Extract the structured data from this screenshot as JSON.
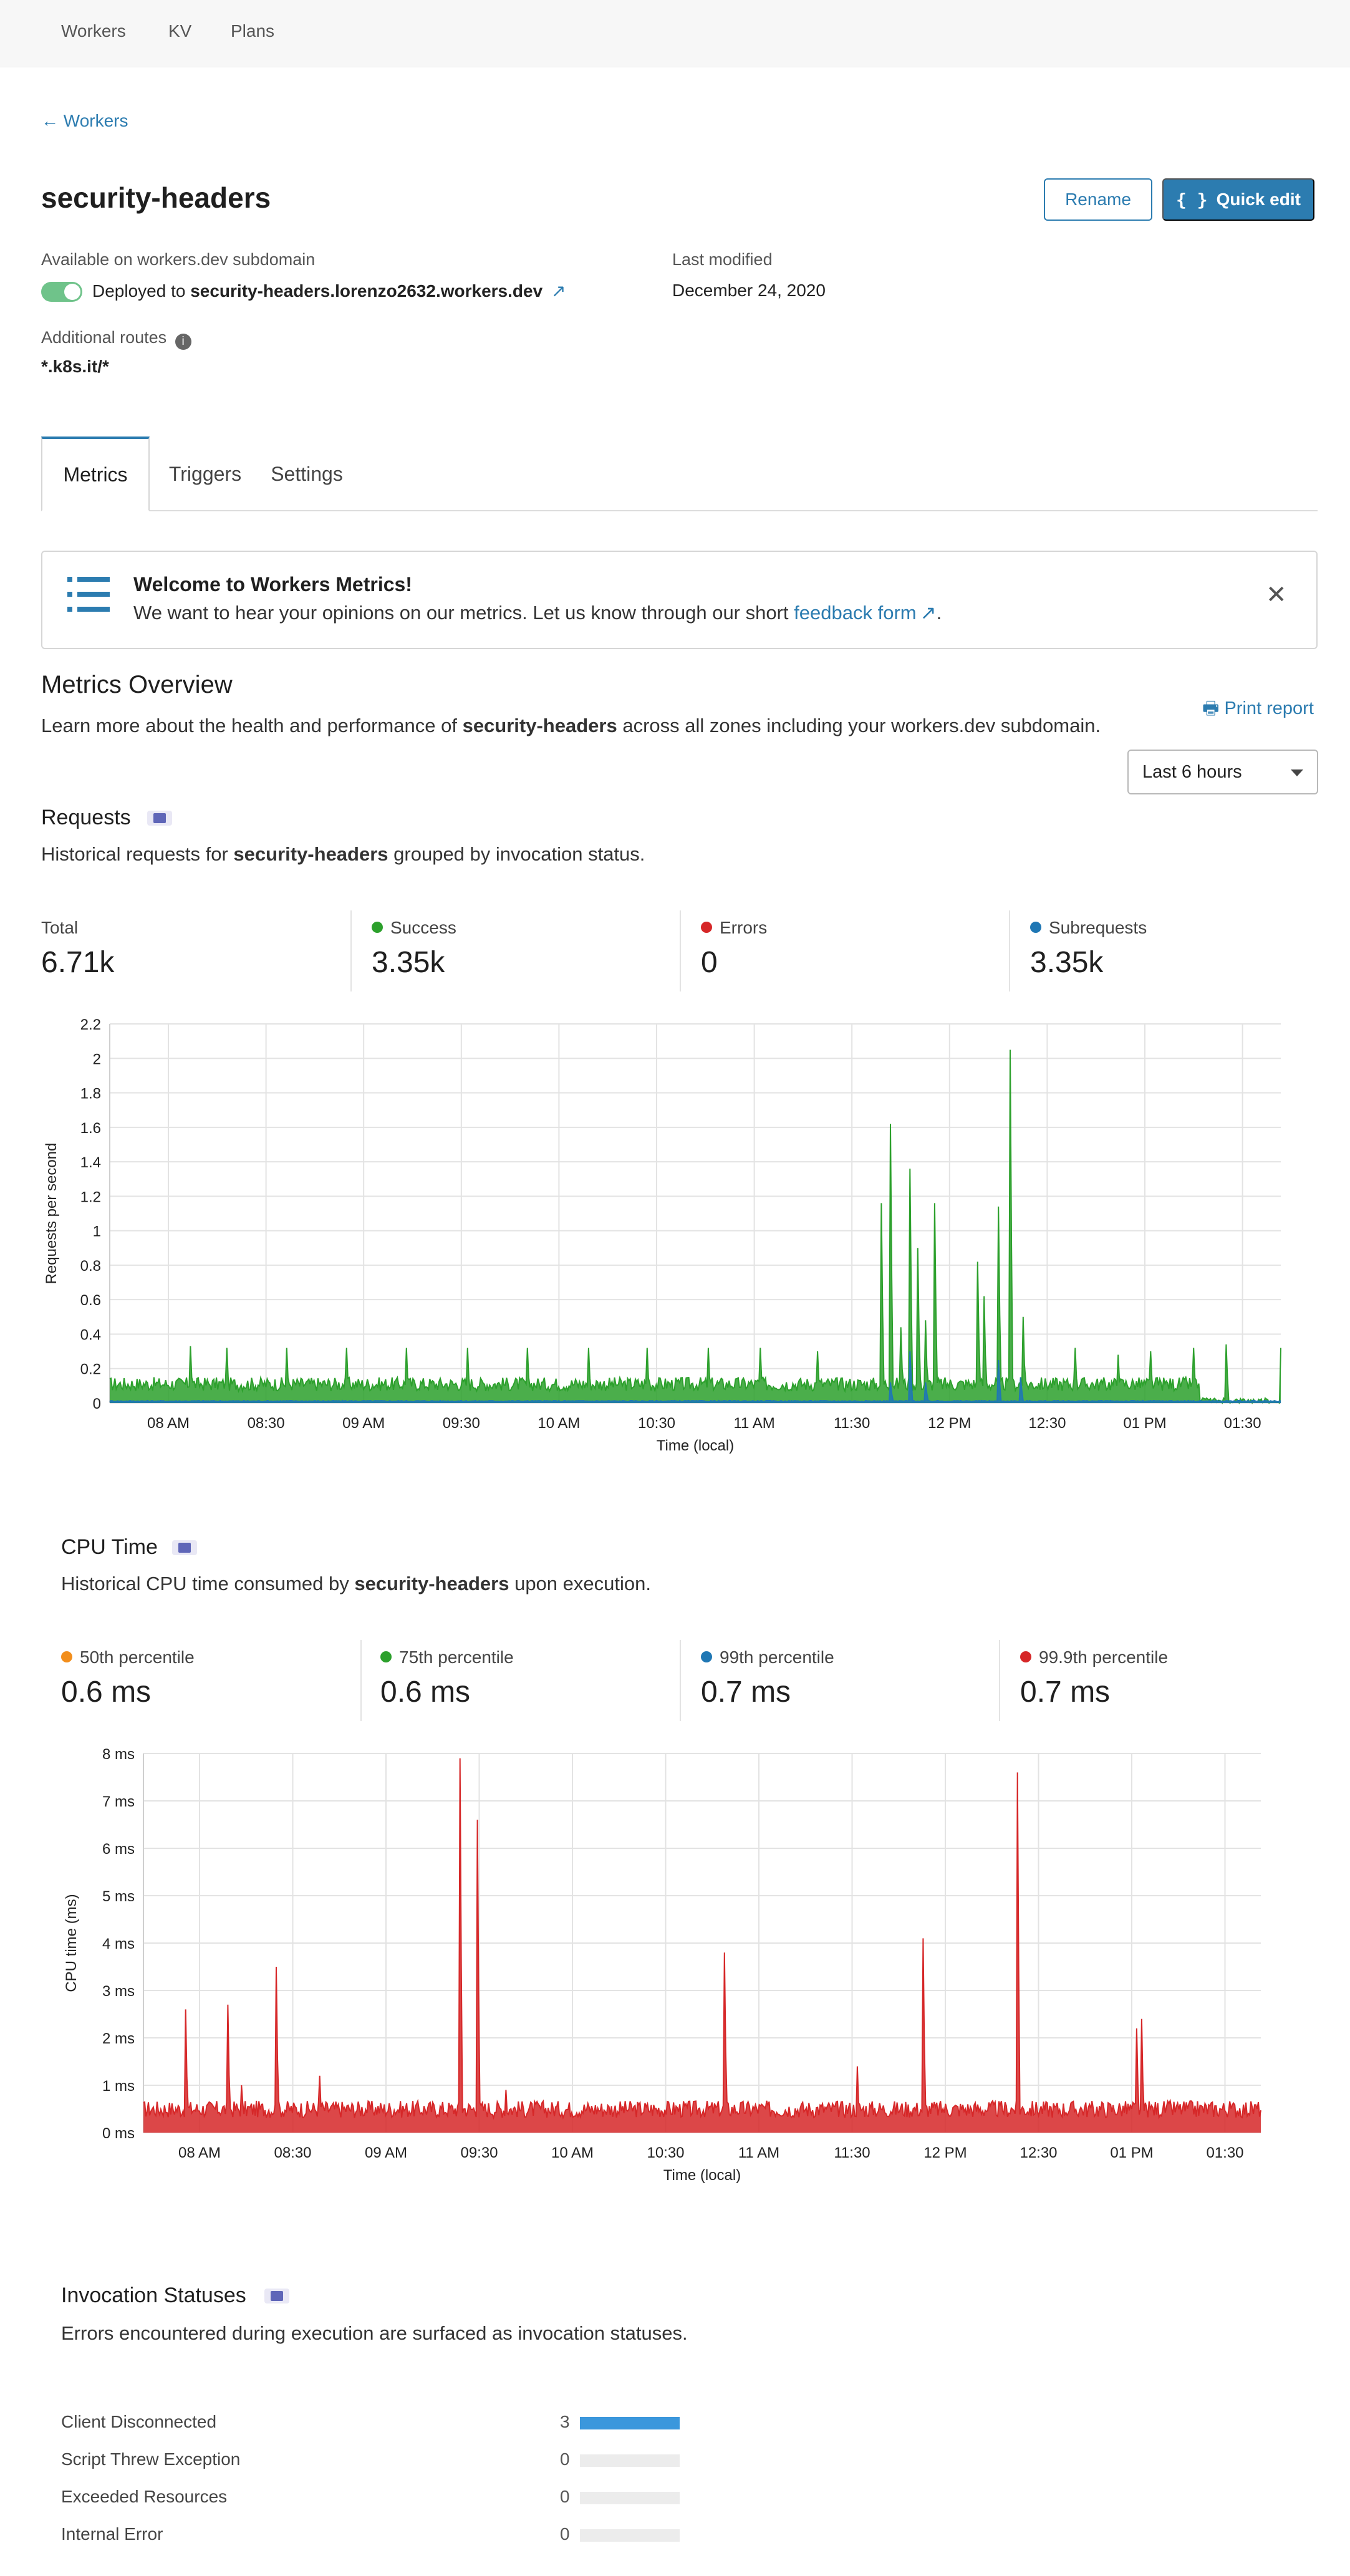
{
  "nav": {
    "items": [
      "Workers",
      "KV",
      "Plans"
    ]
  },
  "back": {
    "label": "Workers"
  },
  "worker": {
    "name": "security-headers",
    "subdomain_label": "Available on workers.dev subdomain",
    "deployed_prefix": "Deployed to",
    "deployed_host": "security-headers.lorenzo2632.workers.dev",
    "modified_label": "Last modified",
    "modified_value": "December 24, 2020",
    "routes_label": "Additional routes",
    "routes_value": "*.k8s.it/*"
  },
  "buttons": {
    "rename": "Rename",
    "quick_edit": "Quick edit"
  },
  "tabs": [
    "Metrics",
    "Triggers",
    "Settings"
  ],
  "banner": {
    "title": "Welcome to Workers Metrics!",
    "text": "We want to hear your opinions on our metrics. Let us know through our short",
    "link": "feedback form",
    "end": "."
  },
  "overview": {
    "title": "Metrics Overview",
    "desc_pre": "Learn more about the health and performance of",
    "desc_strong": "security-headers",
    "desc_post": "across all zones including your workers.dev subdomain.",
    "print": "Print report",
    "range": "Last 6 hours"
  },
  "requests": {
    "title": "Requests",
    "desc_pre": "Historical requests for",
    "desc_strong": "security-headers",
    "desc_post": "grouped by invocation status.",
    "stats": [
      {
        "label": "Total",
        "value": "6.71k",
        "color": ""
      },
      {
        "label": "Success",
        "value": "3.35k",
        "color": "#2ca02c"
      },
      {
        "label": "Errors",
        "value": "0",
        "color": "#d62728"
      },
      {
        "label": "Subrequests",
        "value": "3.35k",
        "color": "#1f77b4"
      }
    ]
  },
  "cpu": {
    "title": "CPU Time",
    "desc_pre": "Historical CPU time consumed by",
    "desc_strong": "security-headers",
    "desc_post": "upon execution.",
    "stats": [
      {
        "label": "50th percentile",
        "value": "0.6 ms",
        "color": "#f28e1c"
      },
      {
        "label": "75th percentile",
        "value": "0.6 ms",
        "color": "#2ca02c"
      },
      {
        "label": "99th percentile",
        "value": "0.7 ms",
        "color": "#1f77b4"
      },
      {
        "label": "99.9th percentile",
        "value": "0.7 ms",
        "color": "#d62728"
      }
    ]
  },
  "invocations": {
    "title": "Invocation Statuses",
    "desc": "Errors encountered during execution are surfaced as invocation statuses.",
    "rows": [
      {
        "label": "Client Disconnected",
        "count": "3",
        "fraction": 1.0
      },
      {
        "label": "Script Threw Exception",
        "count": "0",
        "fraction": 0
      },
      {
        "label": "Exceeded Resources",
        "count": "0",
        "fraction": 0
      },
      {
        "label": "Internal Error",
        "count": "0",
        "fraction": 0
      }
    ]
  },
  "chart_data": [
    {
      "type": "line",
      "title": "",
      "xlabel": "Time (local)",
      "ylabel": "Requests per second",
      "ylim": [
        0,
        2.2
      ],
      "yticks": [
        "0",
        "0.2",
        "0.4",
        "0.6",
        "0.8",
        "1",
        "1.2",
        "1.4",
        "1.6",
        "1.8",
        "2",
        "2.2"
      ],
      "xticks": [
        "08 AM",
        "08:30",
        "09 AM",
        "09:30",
        "10 AM",
        "10:30",
        "11 AM",
        "11:30",
        "12 PM",
        "12:30",
        "01 PM",
        "01:30"
      ],
      "grid": true,
      "series": [
        {
          "color": "#2ca02c",
          "baseline": 0.1,
          "spikes": [
            [
              0.075,
              0.33
            ],
            [
              0.108,
              0.32
            ],
            [
              0.163,
              0.32
            ],
            [
              0.218,
              0.32
            ],
            [
              0.274,
              0.32
            ],
            [
              0.33,
              0.32
            ],
            [
              0.385,
              0.32
            ],
            [
              0.441,
              0.32
            ],
            [
              0.496,
              0.32
            ],
            [
              0.552,
              0.32
            ],
            [
              0.6,
              0.32
            ],
            [
              0.653,
              0.3
            ],
            [
              0.712,
              1.16
            ],
            [
              0.72,
              1.62
            ],
            [
              0.73,
              0.44
            ],
            [
              0.738,
              1.36
            ],
            [
              0.745,
              0.9
            ],
            [
              0.752,
              0.48
            ],
            [
              0.761,
              1.16
            ],
            [
              0.8,
              0.82
            ],
            [
              0.806,
              0.62
            ],
            [
              0.82,
              1.14
            ],
            [
              0.83,
              2.05
            ],
            [
              0.842,
              0.5
            ],
            [
              0.89,
              0.32
            ],
            [
              0.93,
              0.28
            ],
            [
              0.96,
              0.3
            ],
            [
              1.0,
              0.32
            ],
            [
              1.03,
              0.34
            ],
            [
              1.08,
              0.32
            ]
          ]
        },
        {
          "color": "#1f77b4",
          "baseline": 0.01,
          "spikes": [
            [
              0.72,
              0.12
            ],
            [
              0.738,
              0.3
            ],
            [
              0.752,
              0.12
            ],
            [
              0.82,
              0.25
            ],
            [
              0.84,
              0.15
            ]
          ]
        }
      ]
    },
    {
      "type": "line",
      "title": "",
      "xlabel": "Time (local)",
      "ylabel": "CPU time (ms)",
      "ylim": [
        0,
        8
      ],
      "yticks": [
        "0 ms",
        "1 ms",
        "2 ms",
        "3 ms",
        "4 ms",
        "5 ms",
        "6 ms",
        "7 ms",
        "8 ms"
      ],
      "xticks": [
        "08 AM",
        "08:30",
        "09 AM",
        "09:30",
        "10 AM",
        "10:30",
        "11 AM",
        "11:30",
        "12 PM",
        "12:30",
        "01 PM",
        "01:30"
      ],
      "grid": true,
      "series": [
        {
          "color": "#d62728",
          "baseline": 0.45,
          "spikes": [
            [
              0.041,
              2.6
            ],
            [
              0.082,
              2.7
            ],
            [
              0.095,
              1.0
            ],
            [
              0.129,
              3.5
            ],
            [
              0.17,
              1.2
            ],
            [
              0.306,
              7.9
            ],
            [
              0.323,
              6.6
            ],
            [
              0.35,
              0.9
            ],
            [
              0.562,
              3.8
            ],
            [
              0.69,
              1.4
            ],
            [
              0.753,
              4.1
            ],
            [
              0.845,
              7.6
            ],
            [
              0.96,
              2.2
            ],
            [
              0.965,
              2.4
            ]
          ]
        }
      ]
    }
  ]
}
